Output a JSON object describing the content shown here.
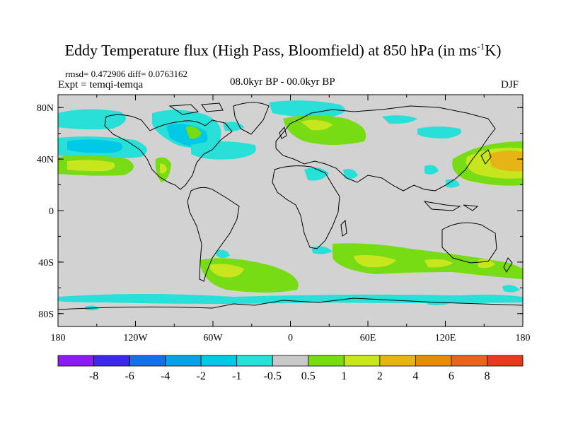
{
  "title_main": "Eddy Temperature flux (High Pass, Bloomfield) at 850 hPa (in ms",
  "title_sup": "-1",
  "title_end": "K)",
  "stats": "rmsd= 0.472906 diff= 0.0763162",
  "experiment": "Expt = temqi-temqa",
  "period": "08.0kyr BP - 00.0kyr BP",
  "season": "DJF",
  "axes": {
    "x_ticks": [
      "180",
      "120W",
      "60W",
      "0",
      "60E",
      "120E",
      "180"
    ],
    "y_ticks": [
      "80N",
      "40N",
      "0",
      "40S",
      "80S"
    ]
  },
  "colorbar": {
    "colors": [
      "#8c1cf0",
      "#3c28e8",
      "#1470e6",
      "#0aa0e6",
      "#00c8e6",
      "#28e0d8",
      "#c8c8c8",
      "#78dc14",
      "#c8e61e",
      "#e6b414",
      "#e68c0a",
      "#e6641e",
      "#e63c1e"
    ],
    "labels": [
      "-8",
      "-6",
      "-4",
      "-2",
      "-1",
      "-0.5",
      "0.5",
      "1",
      "2",
      "4",
      "6",
      "8"
    ]
  },
  "map": {
    "background": "#d2d2d2",
    "land_outline": "#000000"
  }
}
